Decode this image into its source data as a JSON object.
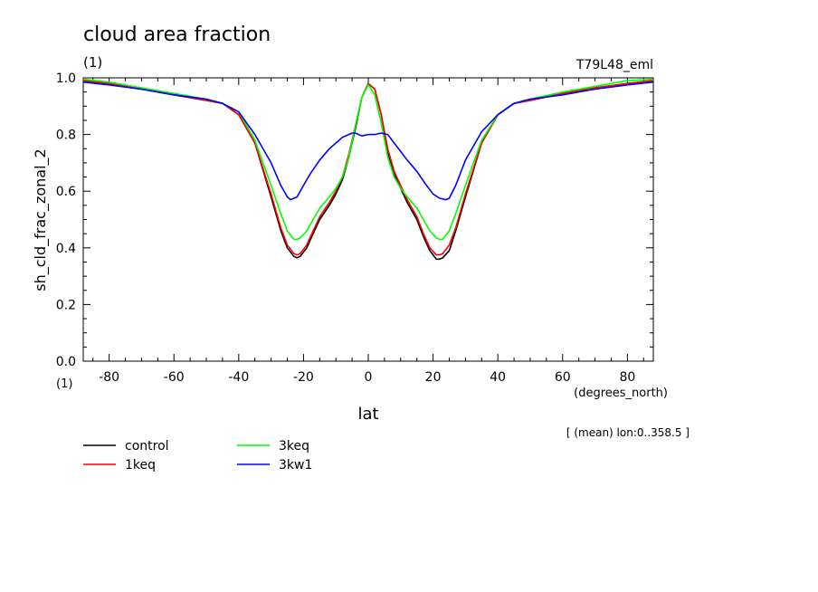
{
  "chart_data": {
    "type": "line",
    "title": "cloud area fraction",
    "subtitle_left": "(1)",
    "subtitle_right": "T79L48_eml",
    "ylabel": "sh_cld_frac_zonal_2",
    "yunits": "(1)",
    "xlabel": "lat",
    "xunits": "(degrees_north)",
    "annotation": "[ (mean) lon:0..358.5 ]",
    "xlim": [
      -88,
      88
    ],
    "ylim": [
      0,
      1
    ],
    "xticks": [
      -80,
      -60,
      -40,
      -20,
      0,
      20,
      40,
      60,
      80
    ],
    "yticks": [
      0.0,
      0.2,
      0.4,
      0.6,
      0.8,
      1.0
    ],
    "ytick_labels": [
      "0.0",
      "0.2",
      "0.4",
      "0.6",
      "0.8",
      "1.0"
    ],
    "legend_placement": "bottom-left",
    "grid": false,
    "series": [
      {
        "name": "control",
        "color": "#000000",
        "x": [
          -88,
          -80,
          -70,
          -60,
          -50,
          -45,
          -40,
          -35,
          -30,
          -27,
          -25,
          -23,
          -22,
          -21,
          -19,
          -17,
          -15,
          -12,
          -10,
          -8,
          -6,
          -4,
          -2,
          0,
          2,
          4,
          6,
          8,
          10,
          12,
          15,
          17,
          19,
          21,
          22,
          23,
          25,
          27,
          30,
          35,
          40,
          45,
          50,
          60,
          70,
          80,
          88
        ],
        "y": [
          0.99,
          0.98,
          0.96,
          0.94,
          0.92,
          0.91,
          0.87,
          0.77,
          0.58,
          0.46,
          0.4,
          0.37,
          0.365,
          0.37,
          0.4,
          0.45,
          0.5,
          0.55,
          0.59,
          0.64,
          0.72,
          0.82,
          0.93,
          0.98,
          0.96,
          0.87,
          0.74,
          0.66,
          0.61,
          0.56,
          0.5,
          0.44,
          0.39,
          0.36,
          0.36,
          0.365,
          0.39,
          0.46,
          0.58,
          0.77,
          0.87,
          0.91,
          0.92,
          0.945,
          0.965,
          0.98,
          0.99
        ]
      },
      {
        "name": "1keq",
        "color": "#ff0000",
        "x": [
          -88,
          -80,
          -70,
          -60,
          -50,
          -45,
          -40,
          -35,
          -30,
          -27,
          -25,
          -23,
          -22,
          -21,
          -19,
          -17,
          -15,
          -12,
          -10,
          -8,
          -6,
          -4,
          -2,
          0,
          2,
          4,
          6,
          8,
          10,
          12,
          15,
          17,
          19,
          21,
          22,
          23,
          25,
          27,
          30,
          35,
          40,
          45,
          50,
          60,
          70,
          80,
          88
        ],
        "y": [
          0.99,
          0.98,
          0.96,
          0.94,
          0.92,
          0.91,
          0.87,
          0.77,
          0.59,
          0.47,
          0.41,
          0.38,
          0.375,
          0.38,
          0.41,
          0.46,
          0.51,
          0.56,
          0.6,
          0.65,
          0.73,
          0.83,
          0.93,
          0.98,
          0.96,
          0.87,
          0.75,
          0.67,
          0.62,
          0.57,
          0.51,
          0.45,
          0.4,
          0.375,
          0.375,
          0.38,
          0.41,
          0.47,
          0.59,
          0.77,
          0.87,
          0.91,
          0.92,
          0.945,
          0.965,
          0.98,
          0.99
        ]
      },
      {
        "name": "3keq",
        "color": "#00ff00",
        "x": [
          -88,
          -80,
          -70,
          -60,
          -50,
          -45,
          -40,
          -35,
          -30,
          -27,
          -25,
          -23,
          -22,
          -21,
          -19,
          -17,
          -15,
          -12,
          -10,
          -8,
          -6,
          -4,
          -2,
          0,
          2,
          4,
          6,
          8,
          10,
          12,
          15,
          17,
          19,
          21,
          22,
          23,
          25,
          27,
          30,
          35,
          40,
          45,
          50,
          60,
          70,
          80,
          88
        ],
        "y": [
          0.995,
          0.985,
          0.965,
          0.945,
          0.925,
          0.91,
          0.88,
          0.78,
          0.62,
          0.52,
          0.46,
          0.43,
          0.43,
          0.435,
          0.46,
          0.5,
          0.54,
          0.58,
          0.61,
          0.65,
          0.72,
          0.83,
          0.93,
          0.975,
          0.94,
          0.84,
          0.72,
          0.65,
          0.61,
          0.58,
          0.54,
          0.5,
          0.46,
          0.435,
          0.43,
          0.43,
          0.46,
          0.52,
          0.62,
          0.78,
          0.87,
          0.91,
          0.925,
          0.95,
          0.97,
          0.99,
          0.995
        ]
      },
      {
        "name": "3kw1",
        "color": "#0000ff",
        "x": [
          -88,
          -80,
          -70,
          -60,
          -50,
          -45,
          -40,
          -35,
          -30,
          -27,
          -25,
          -24,
          -22,
          -20,
          -18,
          -15,
          -12,
          -10,
          -8,
          -6,
          -5,
          -4,
          -3,
          -2,
          0,
          2,
          4,
          6,
          8,
          10,
          12,
          15,
          18,
          20,
          22,
          24,
          25,
          27,
          30,
          35,
          40,
          45,
          50,
          60,
          70,
          80,
          88
        ],
        "y": [
          0.985,
          0.975,
          0.96,
          0.94,
          0.925,
          0.91,
          0.88,
          0.8,
          0.7,
          0.62,
          0.58,
          0.57,
          0.58,
          0.62,
          0.66,
          0.71,
          0.75,
          0.77,
          0.79,
          0.8,
          0.805,
          0.805,
          0.8,
          0.795,
          0.8,
          0.8,
          0.805,
          0.8,
          0.77,
          0.74,
          0.71,
          0.67,
          0.62,
          0.59,
          0.575,
          0.57,
          0.575,
          0.62,
          0.71,
          0.81,
          0.87,
          0.91,
          0.925,
          0.94,
          0.96,
          0.975,
          0.985
        ]
      }
    ]
  }
}
